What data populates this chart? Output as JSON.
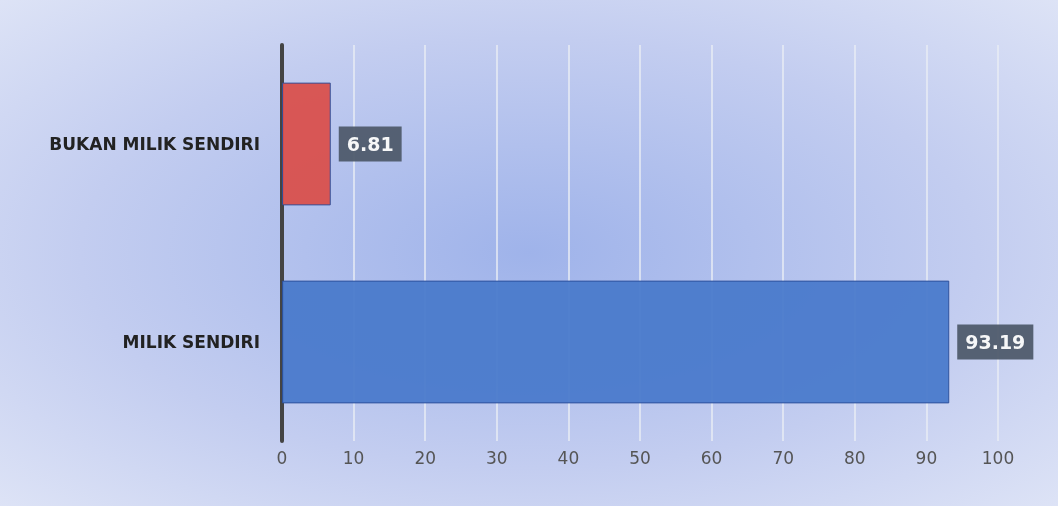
{
  "chart_data": {
    "type": "bar",
    "orientation": "horizontal",
    "categories": [
      "BUKAN MILIK SENDIRI",
      "MILIK SENDIRI"
    ],
    "values": [
      6.81,
      93.19
    ],
    "colors": [
      "#d9504c",
      "#4a7acb"
    ],
    "xlim": [
      0,
      100
    ],
    "xticks": [
      0,
      10,
      20,
      30,
      40,
      50,
      60,
      70,
      80,
      90,
      100
    ],
    "grid": "x",
    "data_labels": true
  }
}
